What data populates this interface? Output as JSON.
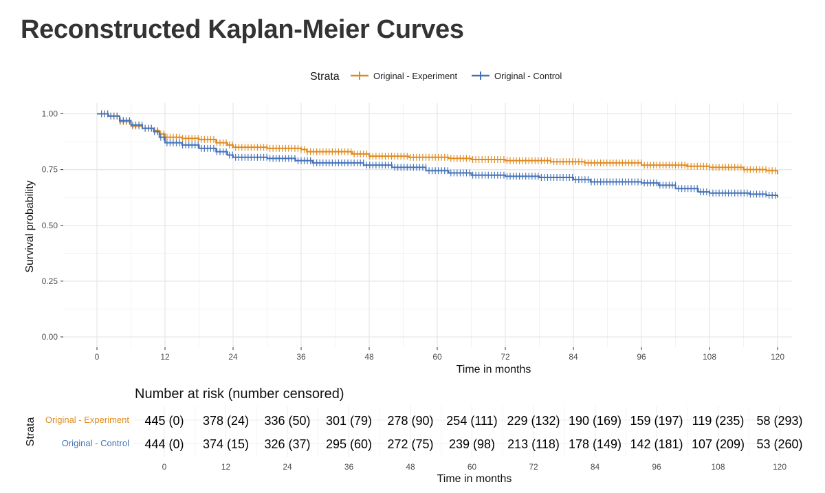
{
  "title": "Reconstructed Kaplan-Meier Curves",
  "chart_data": [
    {
      "type": "line",
      "title": "Reconstructed Kaplan-Meier Curves",
      "xlabel": "Time in months",
      "ylabel": "Survival probability",
      "xlim": [
        0,
        120
      ],
      "ylim": [
        0,
        1
      ],
      "xticks": [
        "0",
        "12",
        "24",
        "36",
        "48",
        "60",
        "72",
        "84",
        "96",
        "108",
        "120"
      ],
      "yticks": [
        "0.00",
        "0.25",
        "0.50",
        "0.75",
        "1.00"
      ],
      "grid": true,
      "legend_title": "Strata",
      "legend_position": "top",
      "series": [
        {
          "name": "Original - Experiment",
          "color": "#e08a1e",
          "points": [
            [
              0,
              1.0
            ],
            [
              2,
              0.99
            ],
            [
              4,
              0.965
            ],
            [
              6,
              0.945
            ],
            [
              8,
              0.935
            ],
            [
              10,
              0.925
            ],
            [
              11,
              0.91
            ],
            [
              12,
              0.895
            ],
            [
              15,
              0.89
            ],
            [
              18,
              0.885
            ],
            [
              21,
              0.87
            ],
            [
              23,
              0.86
            ],
            [
              24,
              0.85
            ],
            [
              30,
              0.845
            ],
            [
              36,
              0.84
            ],
            [
              37,
              0.83
            ],
            [
              45,
              0.82
            ],
            [
              48,
              0.81
            ],
            [
              55,
              0.805
            ],
            [
              62,
              0.8
            ],
            [
              66,
              0.795
            ],
            [
              72,
              0.79
            ],
            [
              80,
              0.785
            ],
            [
              86,
              0.78
            ],
            [
              96,
              0.77
            ],
            [
              104,
              0.765
            ],
            [
              108,
              0.76
            ],
            [
              114,
              0.75
            ],
            [
              118,
              0.745
            ],
            [
              120,
              0.73
            ]
          ]
        },
        {
          "name": "Original - Control",
          "color": "#4472b8",
          "points": [
            [
              0,
              1.0
            ],
            [
              2,
              0.99
            ],
            [
              4,
              0.97
            ],
            [
              6,
              0.95
            ],
            [
              8,
              0.935
            ],
            [
              10,
              0.92
            ],
            [
              11,
              0.895
            ],
            [
              12,
              0.87
            ],
            [
              15,
              0.86
            ],
            [
              18,
              0.845
            ],
            [
              21,
              0.83
            ],
            [
              23,
              0.815
            ],
            [
              24,
              0.805
            ],
            [
              30,
              0.8
            ],
            [
              35,
              0.79
            ],
            [
              38,
              0.78
            ],
            [
              47,
              0.77
            ],
            [
              52,
              0.76
            ],
            [
              58,
              0.745
            ],
            [
              62,
              0.735
            ],
            [
              66,
              0.725
            ],
            [
              72,
              0.72
            ],
            [
              78,
              0.715
            ],
            [
              84,
              0.705
            ],
            [
              87,
              0.695
            ],
            [
              96,
              0.69
            ],
            [
              99,
              0.68
            ],
            [
              102,
              0.665
            ],
            [
              106,
              0.65
            ],
            [
              108,
              0.645
            ],
            [
              115,
              0.64
            ],
            [
              118,
              0.635
            ],
            [
              120,
              0.625
            ]
          ]
        }
      ]
    },
    {
      "type": "table",
      "title": "Number at risk (number censored)",
      "xlabel": "Time in months",
      "ylabel": "Strata",
      "times": [
        "0",
        "12",
        "24",
        "36",
        "48",
        "60",
        "72",
        "84",
        "96",
        "108",
        "120"
      ],
      "rows": [
        {
          "name": "Original - Experiment",
          "color": "#e08a1e",
          "cells": [
            "445 (0)",
            "378 (24)",
            "336 (50)",
            "301 (79)",
            "278 (90)",
            "254 (111)",
            "229 (132)",
            "190 (169)",
            "159 (197)",
            "119 (235)",
            "58 (293)"
          ]
        },
        {
          "name": "Original - Control",
          "color": "#4472b8",
          "cells": [
            "444 (0)",
            "374 (15)",
            "326 (37)",
            "295 (60)",
            "272 (75)",
            "239 (98)",
            "213 (118)",
            "178 (149)",
            "142 (181)",
            "107 (209)",
            "53 (260)"
          ]
        }
      ]
    }
  ]
}
